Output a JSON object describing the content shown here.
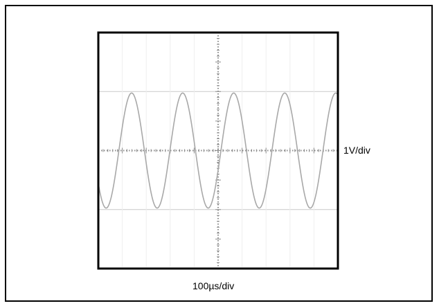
{
  "labels": {
    "vertical_scale": "1V/div",
    "horizontal_scale": "100µs/div"
  },
  "colors": {
    "border": "#000000",
    "grid": "#c8c8c8",
    "axis_dots": "#8c8c8c",
    "trace": "#a8a8a8",
    "background": "#ffffff"
  },
  "chart_data": {
    "type": "line",
    "title": "",
    "xlabel": "100µs/div",
    "ylabel": "1V/div",
    "x_divisions": 10,
    "y_divisions": 8,
    "xlim": [
      -500,
      500
    ],
    "ylim": [
      -4,
      4
    ],
    "x_unit": "µs",
    "y_unit": "V",
    "grid": true,
    "series": [
      {
        "name": "",
        "waveform": "sine",
        "amplitude": 1.95,
        "frequency_hz": 4700,
        "period_us": 213,
        "phase_deg": -20,
        "offset": 0
      }
    ]
  }
}
